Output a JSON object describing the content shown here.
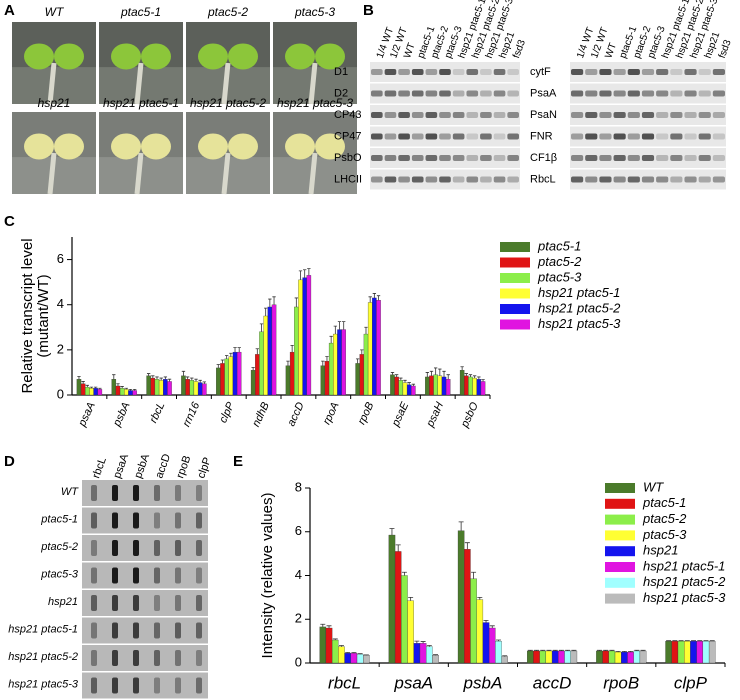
{
  "panel_labels": [
    "A",
    "B",
    "C",
    "D",
    "E"
  ],
  "photos": {
    "labels": [
      "WT",
      "ptac5-1",
      "ptac5-2",
      "ptac5-3",
      "hsp21",
      "hsp21 ptac5-1",
      "hsp21 ptac5-2",
      "hsp21 ptac5-3"
    ]
  },
  "immunoblots": {
    "lanes": [
      "1/4 WT",
      "1/2 WT",
      "WT",
      "ptac5-1",
      "ptac5-2",
      "ptac5-3",
      "hsp21 ptac5-1",
      "hsp21 ptac5-2",
      "hsp21 ptac5-3",
      "hsp21",
      "fsd3"
    ],
    "left_rows": [
      "D1",
      "D2",
      "CP43",
      "CP47",
      "PsbO",
      "LHCII"
    ],
    "right_rows": [
      "cytF",
      "PsaA",
      "PsaN",
      "FNR",
      "CF1β",
      "RbcL"
    ]
  },
  "run_on": {
    "columns": [
      "rbcL",
      "psaA",
      "psbA",
      "accD",
      "rpoB",
      "clpP"
    ],
    "rows": [
      "WT",
      "ptac5-1",
      "ptac5-2",
      "ptac5-3",
      "hsp21",
      "hsp21 ptac5-1",
      "hsp21 ptac5-2",
      "hsp21 ptac5-3"
    ]
  },
  "chart_data": [
    {
      "type": "bar",
      "y_label": [
        "Relative transcript level",
        "(mutant/WT)"
      ],
      "categories": [
        "psaA",
        "psbA",
        "rbcL",
        "rrn16",
        "clpP",
        "ndhB",
        "accD",
        "rpoA",
        "rpoB",
        "psaE",
        "psaH",
        "psbO"
      ],
      "series": [
        {
          "name": "ptac5-1",
          "color": "#4b7b2b",
          "values": [
            0.7,
            0.7,
            0.85,
            0.85,
            1.2,
            1.1,
            1.3,
            1.3,
            1.4,
            0.9,
            0.8,
            1.1
          ],
          "errors": [
            0.12,
            0.2,
            0.1,
            0.2,
            0.15,
            0.12,
            0.2,
            0.2,
            0.2,
            0.1,
            0.2,
            0.15
          ]
        },
        {
          "name": "ptac5-2",
          "color": "#e01414",
          "values": [
            0.5,
            0.4,
            0.75,
            0.7,
            1.4,
            1.8,
            1.9,
            1.5,
            1.8,
            0.8,
            0.85,
            0.85
          ],
          "errors": [
            0.1,
            0.1,
            0.1,
            0.1,
            0.15,
            0.25,
            0.3,
            0.2,
            0.2,
            0.1,
            0.2,
            0.1
          ]
        },
        {
          "name": "ptac5-3",
          "color": "#8cee4a",
          "values": [
            0.35,
            0.3,
            0.7,
            0.65,
            1.6,
            2.8,
            3.9,
            2.3,
            2.7,
            0.65,
            0.9,
            0.8
          ],
          "errors": [
            0.08,
            0.08,
            0.1,
            0.1,
            0.15,
            0.35,
            0.4,
            0.3,
            0.3,
            0.1,
            0.3,
            0.1
          ]
        },
        {
          "name": "hsp21 ptac5-1",
          "color": "#ffff33",
          "values": [
            0.3,
            0.25,
            0.65,
            0.6,
            1.7,
            3.5,
            5.1,
            2.7,
            4.1,
            0.55,
            0.85,
            0.75
          ],
          "errors": [
            0.05,
            0.05,
            0.1,
            0.1,
            0.15,
            0.35,
            0.4,
            0.35,
            0.25,
            0.1,
            0.3,
            0.1
          ]
        },
        {
          "name": "hsp21 ptac5-2",
          "color": "#1414ee",
          "values": [
            0.3,
            0.2,
            0.7,
            0.55,
            1.9,
            3.9,
            5.2,
            2.9,
            4.3,
            0.45,
            0.8,
            0.7
          ],
          "errors": [
            0.05,
            0.05,
            0.1,
            0.1,
            0.2,
            0.35,
            0.35,
            0.35,
            0.2,
            0.1,
            0.25,
            0.1
          ]
        },
        {
          "name": "hsp21 ptac5-3",
          "color": "#e014e0",
          "values": [
            0.25,
            0.2,
            0.6,
            0.5,
            1.9,
            4.0,
            5.3,
            2.9,
            4.2,
            0.4,
            0.7,
            0.6
          ],
          "errors": [
            0.05,
            0.05,
            0.1,
            0.08,
            0.2,
            0.35,
            0.3,
            0.35,
            0.2,
            0.08,
            0.2,
            0.08
          ]
        }
      ],
      "ylim": [
        0,
        7
      ],
      "yticks": [
        0,
        2,
        4,
        6
      ]
    },
    {
      "type": "bar",
      "y_label": [
        "Intensity (relative values)"
      ],
      "categories": [
        "rbcL",
        "psaA",
        "psbA",
        "accD",
        "rpoB",
        "clpP"
      ],
      "series": [
        {
          "name": "WT",
          "color": "#4b7b2b",
          "values": [
            1.65,
            5.85,
            6.05,
            0.55,
            0.55,
            1.0
          ],
          "errors": [
            0.12,
            0.3,
            0.4,
            0.03,
            0.03,
            0.02
          ]
        },
        {
          "name": "ptac5-1",
          "color": "#e01414",
          "values": [
            1.6,
            5.1,
            5.2,
            0.55,
            0.55,
            1.0
          ],
          "errors": [
            0.1,
            0.3,
            0.3,
            0.03,
            0.03,
            0.02
          ]
        },
        {
          "name": "ptac5-2",
          "color": "#8cee4a",
          "values": [
            1.05,
            4.0,
            3.85,
            0.55,
            0.55,
            1.0
          ],
          "errors": [
            0.05,
            0.15,
            0.3,
            0.03,
            0.03,
            0.02
          ]
        },
        {
          "name": "ptac5-3",
          "color": "#ffff33",
          "values": [
            0.75,
            2.85,
            2.9,
            0.55,
            0.5,
            1.0
          ],
          "errors": [
            0.05,
            0.15,
            0.1,
            0.03,
            0.03,
            0.02
          ]
        },
        {
          "name": "hsp21",
          "color": "#1414ee",
          "values": [
            0.45,
            0.9,
            1.85,
            0.55,
            0.5,
            1.0
          ],
          "errors": [
            0.03,
            0.1,
            0.1,
            0.03,
            0.03,
            0.02
          ]
        },
        {
          "name": "hsp21 ptac5-1",
          "color": "#e014e0",
          "values": [
            0.45,
            0.9,
            1.6,
            0.55,
            0.5,
            1.0
          ],
          "errors": [
            0.03,
            0.08,
            0.1,
            0.03,
            0.03,
            0.02
          ]
        },
        {
          "name": "hsp21 ptac5-2",
          "color": "#a0ffff",
          "values": [
            0.4,
            0.75,
            1.0,
            0.55,
            0.55,
            1.0
          ],
          "errors": [
            0.03,
            0.05,
            0.05,
            0.03,
            0.03,
            0.02
          ]
        },
        {
          "name": "hsp21 ptac5-3",
          "color": "#bbbbbb",
          "values": [
            0.35,
            0.35,
            0.3,
            0.55,
            0.55,
            1.0
          ],
          "errors": [
            0.02,
            0.03,
            0.03,
            0.03,
            0.03,
            0.02
          ]
        }
      ],
      "ylim": [
        0,
        8
      ],
      "yticks": [
        0,
        2,
        4,
        6,
        8
      ]
    }
  ]
}
